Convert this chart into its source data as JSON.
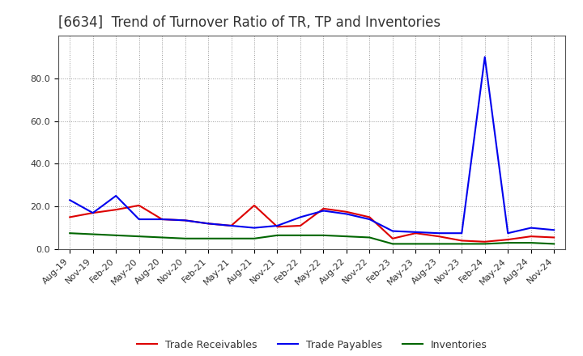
{
  "title": "[6634]  Trend of Turnover Ratio of TR, TP and Inventories",
  "ylim": [
    0,
    100
  ],
  "yticks": [
    0.0,
    20.0,
    40.0,
    60.0,
    80.0
  ],
  "background_color": "#ffffff",
  "grid_color": "#999999",
  "text_color": "#333333",
  "labels": [
    "Aug-19",
    "Nov-19",
    "Feb-20",
    "May-20",
    "Aug-20",
    "Nov-20",
    "Feb-21",
    "May-21",
    "Aug-21",
    "Nov-21",
    "Feb-22",
    "May-22",
    "Aug-22",
    "Nov-22",
    "Feb-23",
    "May-23",
    "Aug-23",
    "Nov-23",
    "Feb-24",
    "May-24",
    "Aug-24",
    "Nov-24"
  ],
  "trade_receivables": [
    15.0,
    17.0,
    18.5,
    20.5,
    14.0,
    13.5,
    12.0,
    11.0,
    20.5,
    10.5,
    11.0,
    19.0,
    17.5,
    15.0,
    5.0,
    7.5,
    6.0,
    4.0,
    3.5,
    4.5,
    6.0,
    5.5
  ],
  "trade_payables": [
    23.0,
    17.0,
    25.0,
    14.0,
    14.0,
    13.5,
    12.0,
    11.0,
    10.0,
    11.0,
    15.0,
    18.0,
    16.5,
    14.0,
    8.5,
    8.0,
    7.5,
    7.5,
    90.0,
    7.5,
    10.0,
    9.0
  ],
  "inventories": [
    7.5,
    7.0,
    6.5,
    6.0,
    5.5,
    5.0,
    5.0,
    5.0,
    5.0,
    6.5,
    6.5,
    6.5,
    6.0,
    5.5,
    2.5,
    2.5,
    2.5,
    2.5,
    2.5,
    3.0,
    3.0,
    2.5
  ],
  "tr_color": "#dd0000",
  "tp_color": "#0000ee",
  "inv_color": "#006600",
  "tr_label": "Trade Receivables",
  "tp_label": "Trade Payables",
  "inv_label": "Inventories",
  "linewidth": 1.5,
  "title_fontsize": 12,
  "tick_fontsize": 8,
  "legend_fontsize": 9,
  "spine_color": "#555555"
}
